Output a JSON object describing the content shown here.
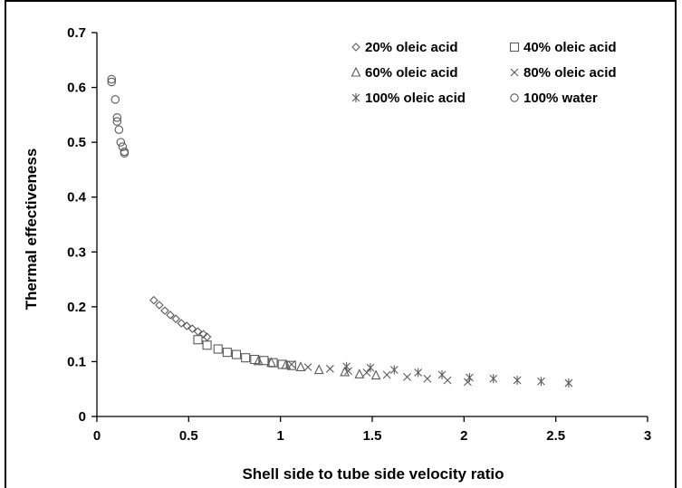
{
  "chart_data": {
    "type": "scatter",
    "title": "",
    "xlabel": "Shell side to tube side velocity ratio",
    "ylabel": "Thermal effectiveness",
    "xlim": [
      0,
      3
    ],
    "ylim": [
      0,
      0.7
    ],
    "xticks": [
      0,
      0.5,
      1,
      1.5,
      2,
      2.5,
      3
    ],
    "xtick_labels": [
      "0",
      "0.5",
      "1",
      "1.5",
      "2",
      "2.5",
      "3"
    ],
    "yticks": [
      0,
      0.1,
      0.2,
      0.3,
      0.4,
      0.5,
      0.6,
      0.7
    ],
    "ytick_labels": [
      "0",
      "0.1",
      "0.2",
      "0.3",
      "0.4",
      "0.5",
      "0.6",
      "0.7"
    ],
    "grid": false,
    "legend_position": "top-right",
    "series": [
      {
        "name": "20% oleic acid",
        "marker": "diamond",
        "points": [
          [
            0.31,
            0.212
          ],
          [
            0.34,
            0.203
          ],
          [
            0.37,
            0.193
          ],
          [
            0.4,
            0.185
          ],
          [
            0.43,
            0.178
          ],
          [
            0.46,
            0.17
          ],
          [
            0.49,
            0.165
          ],
          [
            0.52,
            0.16
          ],
          [
            0.55,
            0.155
          ],
          [
            0.58,
            0.15
          ],
          [
            0.6,
            0.145
          ]
        ]
      },
      {
        "name": "40% oleic acid",
        "marker": "square",
        "points": [
          [
            0.55,
            0.14
          ],
          [
            0.6,
            0.13
          ],
          [
            0.66,
            0.123
          ],
          [
            0.71,
            0.117
          ],
          [
            0.76,
            0.113
          ],
          [
            0.81,
            0.107
          ],
          [
            0.86,
            0.104
          ],
          [
            0.91,
            0.102
          ],
          [
            0.96,
            0.098
          ],
          [
            1.01,
            0.095
          ],
          [
            1.06,
            0.093
          ]
        ]
      },
      {
        "name": "60% oleic acid",
        "marker": "triangle",
        "points": [
          [
            0.88,
            0.101
          ],
          [
            0.95,
            0.098
          ],
          [
            1.03,
            0.094
          ],
          [
            1.11,
            0.09
          ],
          [
            1.21,
            0.085
          ],
          [
            1.35,
            0.081
          ],
          [
            1.43,
            0.077
          ],
          [
            1.52,
            0.075
          ]
        ]
      },
      {
        "name": "80% oleic acid",
        "marker": "x",
        "points": [
          [
            1.06,
            0.095
          ],
          [
            1.15,
            0.09
          ],
          [
            1.27,
            0.087
          ],
          [
            1.37,
            0.083
          ],
          [
            1.47,
            0.08
          ],
          [
            1.58,
            0.076
          ],
          [
            1.69,
            0.072
          ],
          [
            1.8,
            0.069
          ],
          [
            1.91,
            0.066
          ],
          [
            2.02,
            0.063
          ]
        ]
      },
      {
        "name": "100% oleic acid",
        "marker": "asterisk",
        "points": [
          [
            1.36,
            0.091
          ],
          [
            1.49,
            0.089
          ],
          [
            1.62,
            0.085
          ],
          [
            1.75,
            0.08
          ],
          [
            1.88,
            0.076
          ],
          [
            2.03,
            0.071
          ],
          [
            2.16,
            0.069
          ],
          [
            2.29,
            0.066
          ],
          [
            2.42,
            0.064
          ],
          [
            2.57,
            0.061
          ]
        ]
      },
      {
        "name": "100% water",
        "marker": "circle",
        "points": [
          [
            0.08,
            0.615
          ],
          [
            0.08,
            0.61
          ],
          [
            0.1,
            0.578
          ],
          [
            0.11,
            0.545
          ],
          [
            0.11,
            0.538
          ],
          [
            0.12,
            0.523
          ],
          [
            0.13,
            0.5
          ],
          [
            0.14,
            0.492
          ],
          [
            0.15,
            0.483
          ],
          [
            0.15,
            0.48
          ]
        ]
      }
    ]
  }
}
